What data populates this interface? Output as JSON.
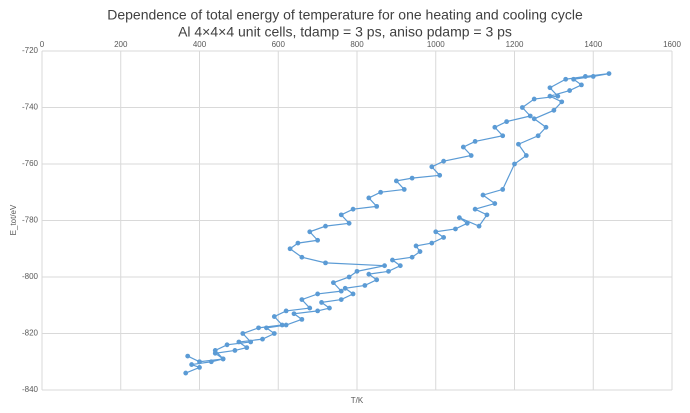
{
  "chart_data": {
    "type": "scatter",
    "title": "Dependence of total energy of temperature for one heating and cooling cycle",
    "subtitle": "Al 4×4×4 unit cells, tdamp = 3 ps, aniso pdamp = 3 ps",
    "xlabel": "T/K",
    "ylabel": "E_tot/eV",
    "color": "#5b9bd5",
    "grid": true,
    "xlim": [
      0,
      1600
    ],
    "xticks": [
      0,
      200,
      400,
      600,
      800,
      1000,
      1200,
      1400,
      1600
    ],
    "ylim": [
      -840,
      -720
    ],
    "yticks": [
      -720,
      -740,
      -760,
      -780,
      -800,
      -820,
      -840
    ],
    "x": [
      365,
      400,
      380,
      430,
      460,
      440,
      490,
      520,
      500,
      560,
      590,
      570,
      620,
      660,
      640,
      700,
      730,
      710,
      760,
      790,
      770,
      820,
      850,
      830,
      880,
      910,
      890,
      940,
      960,
      950,
      990,
      1020,
      1000,
      1050,
      1080,
      1060,
      1110,
      1130,
      1100,
      1150,
      1120,
      1170,
      1200,
      1230,
      1210,
      1260,
      1280,
      1250,
      1300,
      1320,
      1290,
      1340,
      1370,
      1350,
      1400,
      1440,
      1380,
      1330,
      1290,
      1310,
      1250,
      1220,
      1240,
      1180,
      1150,
      1170,
      1100,
      1070,
      1090,
      1020,
      990,
      1010,
      940,
      900,
      920,
      860,
      830,
      850,
      790,
      760,
      780,
      720,
      680,
      700,
      650,
      630,
      660,
      720,
      870,
      800,
      780,
      740,
      760,
      700,
      660,
      680,
      620,
      590,
      610,
      550,
      510,
      530,
      470,
      440,
      460,
      400,
      370
    ],
    "values": [
      -834,
      -832,
      -831,
      -830,
      -829,
      -827,
      -826,
      -825,
      -823,
      -822,
      -820,
      -818,
      -817,
      -815,
      -813,
      -812,
      -811,
      -809,
      -808,
      -806,
      -804,
      -803,
      -801,
      -799,
      -798,
      -796,
      -794,
      -793,
      -791,
      -789,
      -788,
      -786,
      -784,
      -783,
      -781,
      -779,
      -782,
      -778,
      -776,
      -774,
      -771,
      -769,
      -760,
      -757,
      -753,
      -750,
      -747,
      -744,
      -741,
      -738,
      -736,
      -734,
      -732,
      -730,
      -729,
      -728,
      -729,
      -730,
      -733,
      -736,
      -737,
      -740,
      -743,
      -745,
      -747,
      -750,
      -752,
      -754,
      -757,
      -759,
      -761,
      -764,
      -765,
      -766,
      -769,
      -770,
      -772,
      -775,
      -776,
      -778,
      -781,
      -782,
      -784,
      -787,
      -788,
      -790,
      -793,
      -795,
      -796,
      -798,
      -800,
      -802,
      -805,
      -806,
      -808,
      -811,
      -812,
      -814,
      -817,
      -818,
      -820,
      -823,
      -824,
      -826,
      -829,
      -830,
      -828
    ]
  }
}
